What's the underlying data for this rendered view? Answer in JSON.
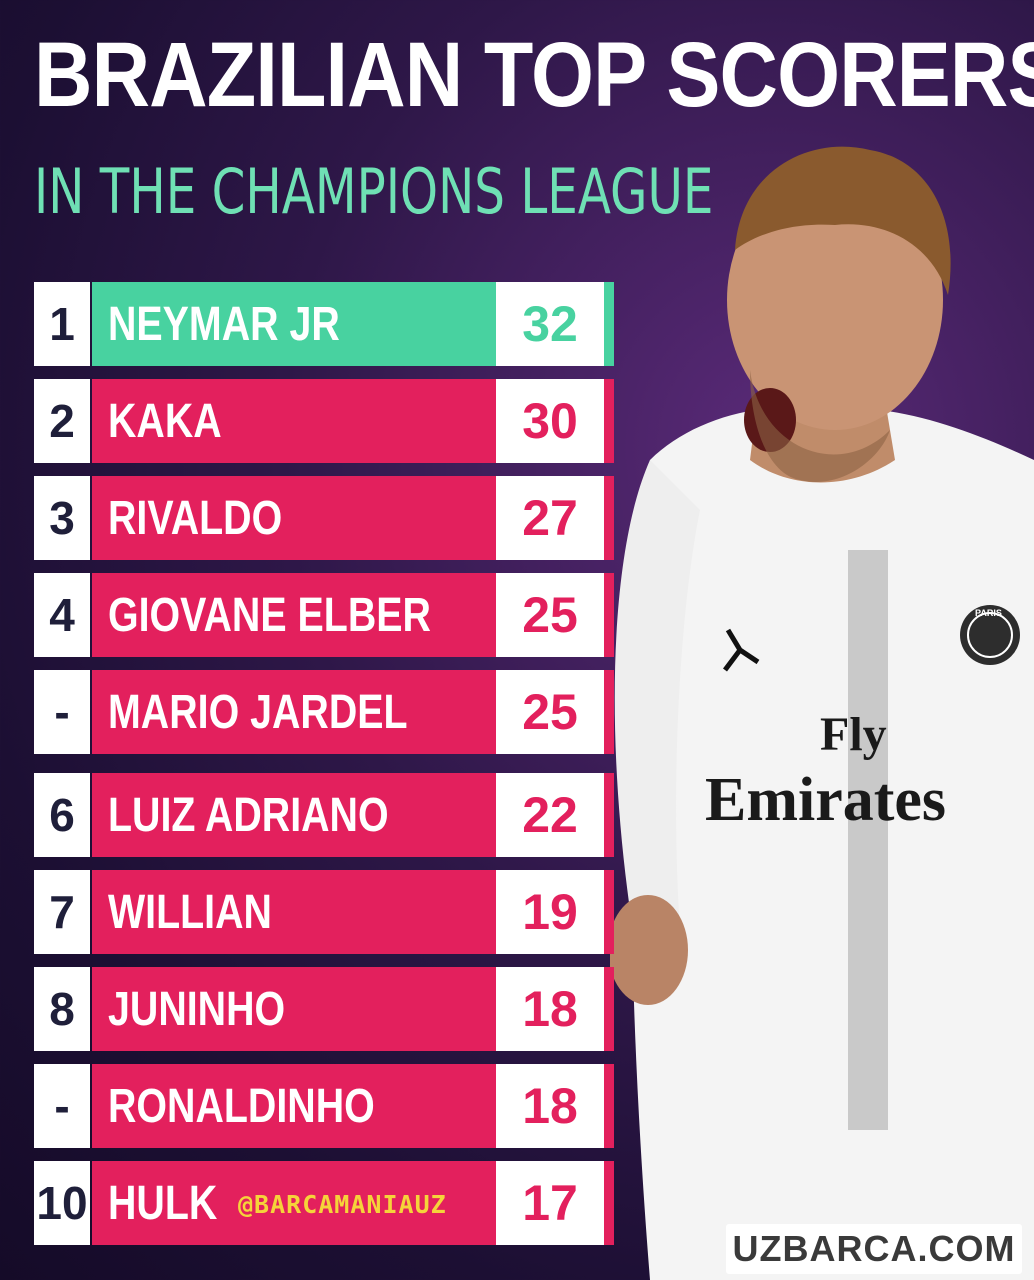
{
  "header": {
    "title": "BRAZILIAN TOP SCORERS",
    "subtitle": "IN THE CHAMPIONS LEAGUE"
  },
  "colors": {
    "background": "#1c0f33",
    "row_accent": "#e3205d",
    "top_accent": "#48d2a0",
    "subtitle": "#6fe0b4",
    "handle": "#f5d33a"
  },
  "scorers": [
    {
      "rank": "1",
      "name": "NEYMAR JR",
      "goals": "32"
    },
    {
      "rank": "2",
      "name": "KAKA",
      "goals": "30"
    },
    {
      "rank": "3",
      "name": "RIVALDO",
      "goals": "27"
    },
    {
      "rank": "4",
      "name": "GIOVANE ELBER",
      "goals": "25"
    },
    {
      "rank": "-",
      "name": "MARIO JARDEL",
      "goals": "25"
    },
    {
      "rank": "6",
      "name": "LUIZ ADRIANO",
      "goals": "22"
    },
    {
      "rank": "7",
      "name": "WILLIAN",
      "goals": "19"
    },
    {
      "rank": "8",
      "name": "JUNINHO",
      "goals": "18"
    },
    {
      "rank": "-",
      "name": "RONALDINHO",
      "goals": "18"
    },
    {
      "rank": "10",
      "name": "HULK",
      "goals": "17"
    }
  ],
  "player_photo": {
    "shirt_sponsor_line1": "Fly",
    "shirt_sponsor_line2": "Emirates",
    "crest_text": "PARIS"
  },
  "footer": {
    "handle": "@BARCAMANIAUZ",
    "watermark": "UZBARCA.COM"
  }
}
